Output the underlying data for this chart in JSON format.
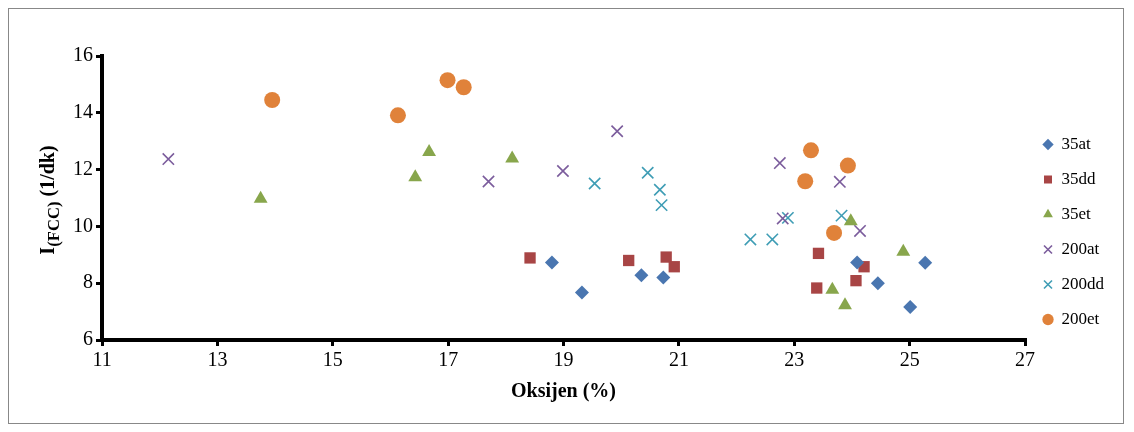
{
  "chart_data": {
    "type": "scatter",
    "xlabel": "Oksijen (%)",
    "ylabel": "I$_{(FCC)}$ (1/dk)",
    "xlim": [
      11,
      27
    ],
    "xticks": [
      11,
      13,
      15,
      17,
      19,
      21,
      23,
      25,
      27
    ],
    "ylim": [
      6,
      16
    ],
    "yticks": [
      6,
      8,
      10,
      12,
      14,
      16
    ],
    "grid": false,
    "legend": "right",
    "series": [
      {
        "name": "35at",
        "color": "#4a76b0",
        "marker": "diamond",
        "x": [
          18.8,
          19.32,
          20.35,
          20.73,
          24.09,
          24.45,
          25.27,
          25.01
        ],
        "values": [
          8.73,
          7.67,
          8.28,
          8.2,
          8.73,
          8.0,
          8.72,
          7.16
        ]
      },
      {
        "name": "35dd",
        "color": "#a84545",
        "marker": "square",
        "x": [
          18.42,
          20.13,
          20.78,
          20.92,
          23.42,
          23.39,
          24.21,
          24.07
        ],
        "values": [
          8.89,
          8.8,
          8.92,
          8.58,
          9.05,
          7.83,
          8.58,
          8.09
        ]
      },
      {
        "name": "35et",
        "color": "#88a64c",
        "marker": "triangle",
        "x": [
          13.75,
          16.43,
          16.67,
          18.11,
          23.98,
          24.89,
          23.66,
          23.88
        ],
        "values": [
          10.97,
          11.73,
          12.62,
          12.39,
          10.18,
          9.11,
          7.77,
          7.22
        ]
      },
      {
        "name": "200at",
        "color": "#7b5c9c",
        "marker": "cross",
        "x": [
          12.15,
          17.7,
          18.99,
          19.93,
          22.75,
          23.79,
          22.8,
          24.14
        ],
        "values": [
          12.37,
          11.58,
          11.95,
          13.35,
          12.23,
          11.57,
          10.28,
          9.84
        ]
      },
      {
        "name": "200dd",
        "color": "#3f9db5",
        "marker": "cross",
        "x": [
          19.54,
          20.46,
          20.67,
          20.7,
          22.24,
          22.62,
          22.89,
          23.82
        ],
        "values": [
          11.51,
          11.89,
          11.29,
          10.75,
          9.54,
          9.54,
          10.3,
          10.38
        ]
      },
      {
        "name": "200et",
        "color": "#e0823a",
        "marker": "circle",
        "x": [
          13.95,
          16.13,
          16.99,
          17.27,
          23.29,
          23.93,
          23.19,
          23.69
        ],
        "values": [
          14.45,
          13.91,
          15.15,
          14.9,
          12.68,
          12.14,
          11.59,
          9.77
        ]
      }
    ]
  }
}
